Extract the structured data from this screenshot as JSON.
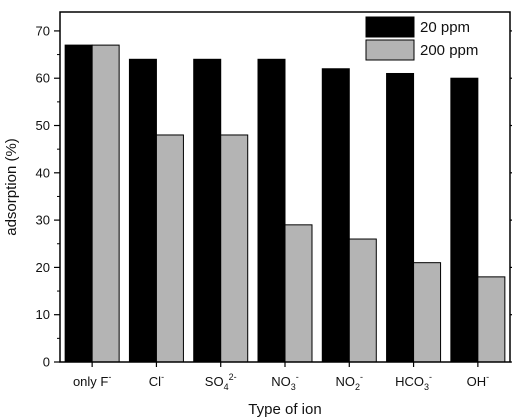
{
  "chart_data": {
    "type": "bar",
    "xlabel": "Type of ion",
    "ylabel": "adsorption (%)",
    "ylim": [
      0,
      74
    ],
    "yticks": [
      0,
      10,
      20,
      30,
      40,
      50,
      60,
      70
    ],
    "grid": false,
    "legend_position": "top-right",
    "categories": [
      {
        "base": "only F",
        "sub": "",
        "sup": "-"
      },
      {
        "base": "Cl",
        "sub": "",
        "sup": "-"
      },
      {
        "base": "SO",
        "sub": "4",
        "sup": "2-"
      },
      {
        "base": "NO",
        "sub": "3",
        "sup": "-"
      },
      {
        "base": "NO",
        "sub": "2",
        "sup": "-"
      },
      {
        "base": "HCO",
        "sub": "3",
        "sup": "-"
      },
      {
        "base": "OH",
        "sub": "",
        "sup": "-"
      }
    ],
    "series": [
      {
        "name": "20 ppm",
        "color": "#000000",
        "values": [
          67,
          64,
          64,
          64,
          62,
          61,
          60
        ]
      },
      {
        "name": "200 ppm",
        "color": "#b4b4b4",
        "values": [
          67,
          48,
          48,
          29,
          26,
          21,
          18
        ]
      }
    ]
  }
}
